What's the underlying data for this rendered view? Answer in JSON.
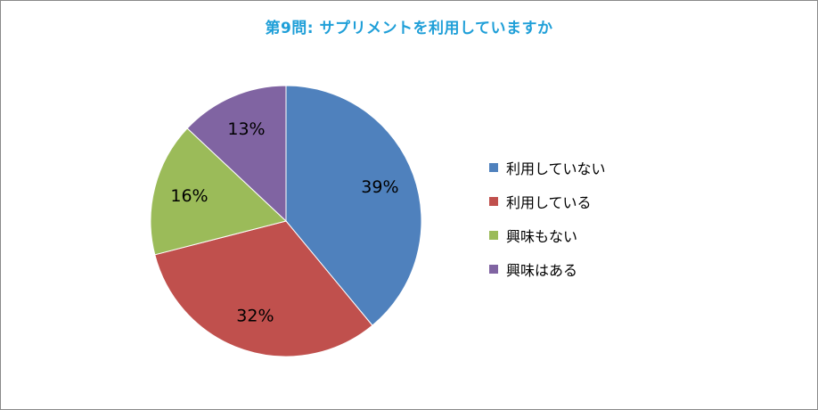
{
  "chart_data": {
    "type": "pie",
    "title": "第9問: サプリメントを利用していますか",
    "categories": [
      "利用していない",
      "利用している",
      "興味もない",
      "興味はある"
    ],
    "values": [
      39,
      32,
      16,
      13
    ],
    "data_labels": [
      "39%",
      "32%",
      "16%",
      "13%"
    ],
    "colors": [
      "#4f81bd",
      "#c0504d",
      "#9bbb59",
      "#8064a2"
    ],
    "title_color": "#1f9fd8",
    "legend_position": "right",
    "start_angle": "12 o'clock",
    "direction": "clockwise"
  },
  "legend": {
    "items": [
      {
        "label": "利用していない",
        "color": "#4f81bd"
      },
      {
        "label": "利用している",
        "color": "#c0504d"
      },
      {
        "label": "興味もない",
        "color": "#9bbb59"
      },
      {
        "label": "興味はある",
        "color": "#8064a2"
      }
    ]
  }
}
